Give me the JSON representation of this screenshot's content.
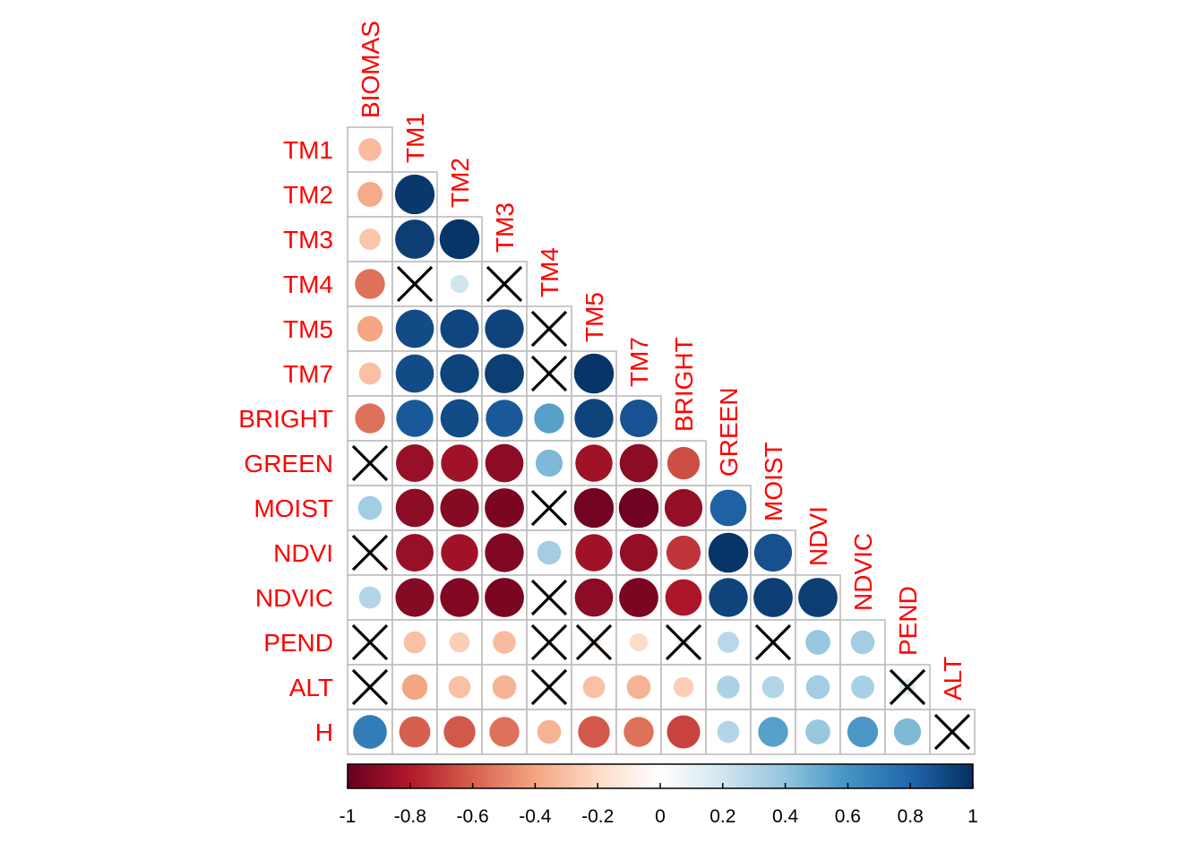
{
  "chart_data": {
    "type": "heatmap",
    "title": "",
    "subtitle": "",
    "variables": [
      "BIOMAS",
      "TM1",
      "TM2",
      "TM3",
      "TM4",
      "TM5",
      "TM7",
      "BRIGHT",
      "GREEN",
      "MOIST",
      "NDVI",
      "NDVIC",
      "PEND",
      "ALT",
      "H"
    ],
    "row_labels": [
      "TM1",
      "TM2",
      "TM3",
      "TM4",
      "TM5",
      "TM7",
      "BRIGHT",
      "GREEN",
      "MOIST",
      "NDVI",
      "NDVIC",
      "PEND",
      "ALT",
      "H"
    ],
    "column_labels": [
      "BIOMAS",
      "TM1",
      "TM2",
      "TM3",
      "TM4",
      "TM5",
      "TM7",
      "BRIGHT",
      "GREEN",
      "MOIST",
      "NDVI",
      "NDVIC",
      "PEND",
      "ALT"
    ],
    "shape": "lower-triangle circles",
    "non_significant_marker": "X",
    "correlations": [
      [
        -0.32
      ],
      [
        -0.38,
        0.97
      ],
      [
        -0.28,
        0.95,
        0.98
      ],
      [
        -0.55,
        0.0,
        0.2,
        0.0
      ],
      [
        -0.4,
        0.9,
        0.92,
        0.93,
        0.05
      ],
      [
        -0.3,
        0.9,
        0.93,
        0.95,
        0.0,
        0.98
      ],
      [
        -0.55,
        0.85,
        0.9,
        0.85,
        0.55,
        0.93,
        0.87
      ],
      [
        0.0,
        -0.87,
        -0.85,
        -0.9,
        0.45,
        -0.85,
        -0.9,
        -0.65
      ],
      [
        0.35,
        -0.9,
        -0.92,
        -0.95,
        0.0,
        -0.97,
        -0.98,
        -0.88,
        0.82
      ],
      [
        0.0,
        -0.87,
        -0.85,
        -0.93,
        0.35,
        -0.85,
        -0.88,
        -0.72,
        0.98,
        0.88
      ],
      [
        0.3,
        -0.92,
        -0.93,
        -0.95,
        0.0,
        -0.9,
        -0.95,
        -0.82,
        0.93,
        0.95,
        0.95
      ],
      [
        0.0,
        -0.3,
        -0.25,
        -0.32,
        0.0,
        -0.12,
        -0.2,
        -0.1,
        0.28,
        0.05,
        0.38,
        0.35
      ],
      [
        0.0,
        -0.4,
        -0.3,
        -0.35,
        0.0,
        -0.3,
        -0.35,
        -0.25,
        0.32,
        0.3,
        0.35,
        0.33,
        0.15
      ],
      [
        0.7,
        -0.6,
        -0.62,
        -0.55,
        -0.35,
        -0.62,
        -0.55,
        -0.68,
        0.3,
        0.55,
        0.38,
        0.58,
        0.45,
        0.0
      ]
    ],
    "not_significant": [
      [],
      [],
      [],
      [
        1,
        3
      ],
      [
        4
      ],
      [
        4
      ],
      [],
      [
        0
      ],
      [
        4
      ],
      [
        0
      ],
      [
        4
      ],
      [
        0,
        4,
        5,
        7,
        9
      ],
      [
        0,
        4,
        12
      ],
      [
        13
      ]
    ],
    "colorbar": {
      "ticks": [
        -1,
        -0.8,
        -0.6,
        -0.4,
        -0.2,
        0,
        0.2,
        0.4,
        0.6,
        0.8,
        1
      ],
      "tick_labels": [
        "-1",
        "-0.8",
        "-0.6",
        "-0.4",
        "-0.2",
        "0",
        "0.2",
        "0.4",
        "0.6",
        "0.8",
        "1"
      ],
      "range": [
        -1,
        1
      ],
      "colors": [
        "#67001f",
        "#b2182b",
        "#d6604d",
        "#f4a582",
        "#fddbc7",
        "#ffffff",
        "#d1e5f0",
        "#92c5de",
        "#4393c3",
        "#2166ac",
        "#053061"
      ]
    },
    "label_color": "#ff0000",
    "grid": true
  }
}
